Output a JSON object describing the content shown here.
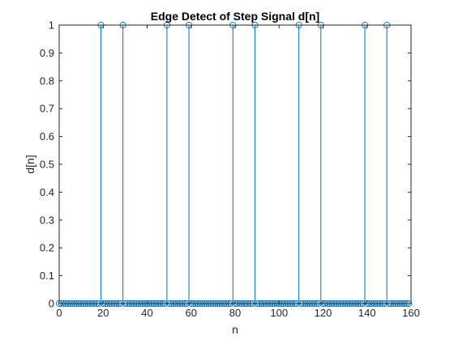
{
  "chart_data": {
    "type": "stem",
    "title": "Edge Detect of Step Signal d[n]",
    "xlabel": "n",
    "ylabel": "d[n]",
    "xlim": [
      0,
      160
    ],
    "ylim": [
      0,
      1
    ],
    "xticks": [
      0,
      20,
      40,
      60,
      80,
      100,
      120,
      140,
      160
    ],
    "yticks": [
      0,
      0.1,
      0.2,
      0.3,
      0.4,
      0.5,
      0.6,
      0.7,
      0.8,
      0.9,
      1
    ],
    "n_start": 0,
    "n_end": 159,
    "impulses": [
      {
        "n": 19,
        "value": 1
      },
      {
        "n": 29,
        "value": 1
      },
      {
        "n": 49,
        "value": 1
      },
      {
        "n": 59,
        "value": 1
      },
      {
        "n": 79,
        "value": 1
      },
      {
        "n": 89,
        "value": 1
      },
      {
        "n": 109,
        "value": 1
      },
      {
        "n": 119,
        "value": 1
      },
      {
        "n": 139,
        "value": 1
      },
      {
        "n": 149,
        "value": 1
      }
    ],
    "baseline_value": 0,
    "grid": false,
    "colors": {
      "stem": "#0072BD",
      "axes": "#262626",
      "background": "#ffffff"
    }
  }
}
